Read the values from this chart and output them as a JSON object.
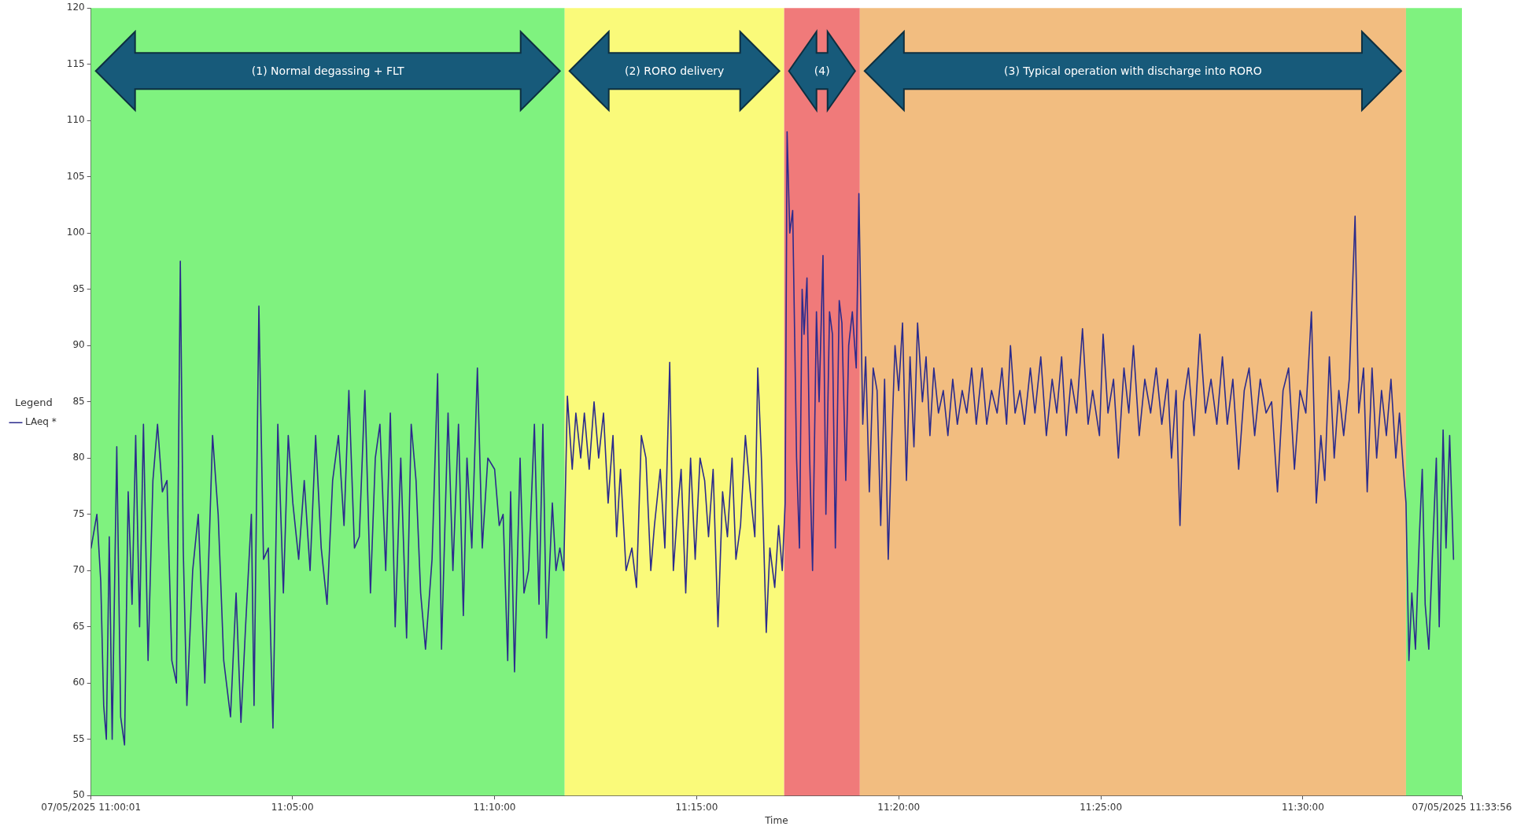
{
  "chart_data": {
    "type": "line",
    "xlabel": "Time",
    "legend_title": "Legend",
    "legend": "left",
    "grid": false,
    "marker": "none",
    "line_style": "solid",
    "xlim": [
      11.000278,
      11.565556
    ],
    "xticks": [
      {
        "value": 11.000278,
        "label": "07/05/2025 11:00:01"
      },
      {
        "value": 11.083333,
        "label": "11:05:00"
      },
      {
        "value": 11.166667,
        "label": "11:10:00"
      },
      {
        "value": 11.25,
        "label": "11:15:00"
      },
      {
        "value": 11.333333,
        "label": "11:20:00"
      },
      {
        "value": 11.416667,
        "label": "11:25:00"
      },
      {
        "value": 11.5,
        "label": "11:30:00"
      },
      {
        "value": 11.565556,
        "label": "07/05/2025 11:33:56"
      }
    ],
    "ylim": [
      50,
      120
    ],
    "yticks": [
      50,
      55,
      60,
      65,
      70,
      75,
      80,
      85,
      90,
      95,
      100,
      105,
      110,
      115,
      120
    ],
    "bands": [
      {
        "axis": "x",
        "from": 11.000278,
        "to": 11.1956,
        "label": "(1) Normal degassing + FLT",
        "color": "#7ff27f"
      },
      {
        "axis": "x",
        "from": 11.1956,
        "to": 11.2861,
        "label": "(2) RORO delivery",
        "color": "#fafa7a"
      },
      {
        "axis": "x",
        "from": 11.2861,
        "to": 11.3173,
        "label": "(4)",
        "color": "#f07a7a"
      },
      {
        "axis": "x",
        "from": 11.3173,
        "to": 11.5425,
        "label": "(3) Typical operation with discharge into RORO",
        "color": "#f2bd80"
      },
      {
        "axis": "x",
        "from": 11.5425,
        "to": 11.565556,
        "color": "#7ff27f"
      }
    ],
    "x": [
      11.0003,
      11.0027,
      11.0043,
      11.0055,
      11.0066,
      11.0078,
      11.009,
      11.0109,
      11.0125,
      11.0141,
      11.0156,
      11.0172,
      11.0187,
      11.0203,
      11.0219,
      11.0238,
      11.0258,
      11.0277,
      11.0297,
      11.0316,
      11.0336,
      11.0355,
      11.0371,
      11.0383,
      11.0398,
      11.0422,
      11.0445,
      11.0472,
      11.0504,
      11.0527,
      11.055,
      11.0578,
      11.0601,
      11.0621,
      11.064,
      11.0664,
      11.0675,
      11.0695,
      11.0714,
      11.0734,
      11.0753,
      11.0773,
      11.0796,
      11.0816,
      11.0835,
      11.0859,
      11.0882,
      11.0906,
      11.0929,
      11.0952,
      11.0976,
      11.0999,
      11.1023,
      11.1046,
      11.1066,
      11.1089,
      11.1109,
      11.1132,
      11.1155,
      11.1175,
      11.1194,
      11.1218,
      11.1237,
      11.1257,
      11.128,
      11.1304,
      11.1323,
      11.1343,
      11.1362,
      11.1382,
      11.1409,
      11.1432,
      11.1448,
      11.1475,
      11.1495,
      11.1518,
      11.1538,
      11.1553,
      11.1573,
      11.1596,
      11.1616,
      11.1639,
      11.1667,
      11.1686,
      11.1702,
      11.1721,
      11.1733,
      11.1749,
      11.1772,
      11.1788,
      11.1807,
      11.1831,
      11.185,
      11.1866,
      11.1881,
      11.1905,
      11.192,
      11.1936,
      11.1952,
      11.1967,
      11.1987,
      11.2002,
      11.2022,
      11.2037,
      11.2057,
      11.2077,
      11.2096,
      11.2116,
      11.2135,
      11.2155,
      11.217,
      11.2186,
      11.2209,
      11.2233,
      11.2252,
      11.2272,
      11.2291,
      11.2311,
      11.2326,
      11.235,
      11.2369,
      11.2389,
      11.2404,
      11.242,
      11.2436,
      11.2455,
      11.2475,
      11.2494,
      11.2514,
      11.2533,
      11.2549,
      11.2568,
      11.2588,
      11.2607,
      11.2627,
      11.2646,
      11.2662,
      11.2681,
      11.2701,
      11.2721,
      11.274,
      11.2752,
      11.2767,
      11.2787,
      11.2802,
      11.2822,
      11.2838,
      11.2853,
      11.2865,
      11.2873,
      11.2884,
      11.2896,
      11.2912,
      11.2924,
      11.2935,
      11.2943,
      11.2955,
      11.2966,
      11.2978,
      11.2994,
      11.3005,
      11.3021,
      11.3033,
      11.3048,
      11.306,
      11.3072,
      11.3088,
      11.3099,
      11.3115,
      11.3127,
      11.3142,
      11.3158,
      11.3169,
      11.3185,
      11.3197,
      11.3212,
      11.3228,
      11.3244,
      11.3259,
      11.3275,
      11.329,
      11.3302,
      11.3318,
      11.3333,
      11.3349,
      11.3365,
      11.338,
      11.3396,
      11.3411,
      11.3431,
      11.3446,
      11.3462,
      11.3478,
      11.3497,
      11.3517,
      11.3536,
      11.3556,
      11.3575,
      11.3595,
      11.3614,
      11.3634,
      11.3653,
      11.3677,
      11.3696,
      11.3716,
      11.3739,
      11.3759,
      11.3778,
      11.3794,
      11.3813,
      11.3833,
      11.3852,
      11.3876,
      11.3895,
      11.3919,
      11.3942,
      11.3966,
      11.3985,
      11.4005,
      11.4024,
      11.4044,
      11.4067,
      11.4091,
      11.4114,
      11.4133,
      11.4161,
      11.4176,
      11.4196,
      11.4219,
      11.4239,
      11.4262,
      11.4282,
      11.4301,
      11.4325,
      11.4348,
      11.4372,
      11.4395,
      11.4418,
      11.4442,
      11.4458,
      11.4477,
      11.4493,
      11.4508,
      11.4528,
      11.4551,
      11.4575,
      11.4598,
      11.4621,
      11.4645,
      11.4668,
      11.4688,
      11.4711,
      11.4735,
      11.4758,
      11.4778,
      11.4801,
      11.4824,
      11.4848,
      11.4871,
      11.4895,
      11.4918,
      11.4941,
      11.4965,
      11.4988,
      11.5012,
      11.5035,
      11.5055,
      11.5074,
      11.509,
      11.5109,
      11.5129,
      11.5148,
      11.5168,
      11.5191,
      11.5215,
      11.523,
      11.525,
      11.5265,
      11.5285,
      11.5304,
      11.5324,
      11.5344,
      11.5363,
      11.5383,
      11.5398,
      11.5414,
      11.5425,
      11.5437,
      11.5449,
      11.5464,
      11.548,
      11.5492,
      11.5504,
      11.5519,
      11.5535,
      11.555,
      11.5562,
      11.5578,
      11.559,
      11.5605,
      11.5621
    ],
    "series": [
      {
        "name": "LAeq *",
        "color": "#2b2b8c",
        "values": [
          72,
          75,
          69,
          58,
          55,
          73,
          55,
          81,
          57,
          54.5,
          77,
          67,
          82,
          65,
          83,
          62,
          78,
          83,
          77,
          78,
          62,
          60,
          97.5,
          72,
          58,
          70,
          75,
          60,
          82,
          75,
          62,
          57,
          68,
          56.5,
          65,
          75,
          58,
          93.5,
          71,
          72,
          56,
          83,
          68,
          82,
          76,
          71,
          78,
          70,
          82,
          72,
          67,
          78,
          82,
          74,
          86,
          72,
          73,
          86,
          68,
          80,
          83,
          70,
          84,
          65,
          80,
          64,
          83,
          78,
          68,
          63,
          71,
          87.5,
          63,
          84,
          70,
          83,
          66,
          80,
          72,
          88,
          72,
          80,
          79,
          74,
          75,
          62,
          77,
          61,
          80,
          68,
          70,
          83,
          67,
          83,
          64,
          76,
          70,
          72,
          70,
          85.5,
          79,
          84,
          80,
          84,
          79,
          85,
          80,
          84,
          76,
          82,
          73,
          79,
          70,
          72,
          68.5,
          82,
          80,
          70,
          74,
          79,
          72,
          88.5,
          70,
          75,
          79,
          68,
          80,
          71,
          80,
          78,
          73,
          79,
          65,
          77,
          73,
          80,
          71,
          74,
          82,
          77,
          73,
          88,
          80,
          64.5,
          72,
          68.5,
          74,
          70,
          76,
          109,
          100,
          102,
          80,
          72,
          95,
          91,
          96,
          80,
          70,
          93,
          85,
          98,
          75,
          93,
          91,
          72,
          94,
          92,
          78,
          90,
          93,
          88,
          103.5,
          83,
          89,
          77,
          88,
          86,
          74,
          87,
          71,
          80,
          90,
          86,
          92,
          78,
          89,
          81,
          92,
          85,
          89,
          82,
          88,
          84,
          86,
          82,
          87,
          83,
          86,
          84,
          88,
          83,
          88,
          83,
          86,
          84,
          88,
          83,
          90,
          84,
          86,
          83,
          88,
          84,
          89,
          82,
          87,
          84,
          89,
          82,
          87,
          84,
          91.5,
          83,
          86,
          82,
          91,
          84,
          87,
          80,
          88,
          84,
          90,
          82,
          87,
          84,
          88,
          83,
          87,
          80,
          86,
          74,
          85,
          88,
          82,
          91,
          84,
          87,
          83,
          89,
          83,
          87,
          79,
          86,
          88,
          82,
          87,
          84,
          85,
          77,
          86,
          88,
          79,
          86,
          84,
          93,
          76,
          82,
          78,
          89,
          80,
          86,
          82,
          87,
          101.5,
          84,
          88,
          77,
          88,
          80,
          86,
          82,
          87,
          80,
          84,
          79,
          76,
          62,
          68,
          63,
          73,
          79,
          67,
          63,
          72,
          80,
          65,
          82.5,
          72,
          82,
          71
        ]
      }
    ]
  }
}
